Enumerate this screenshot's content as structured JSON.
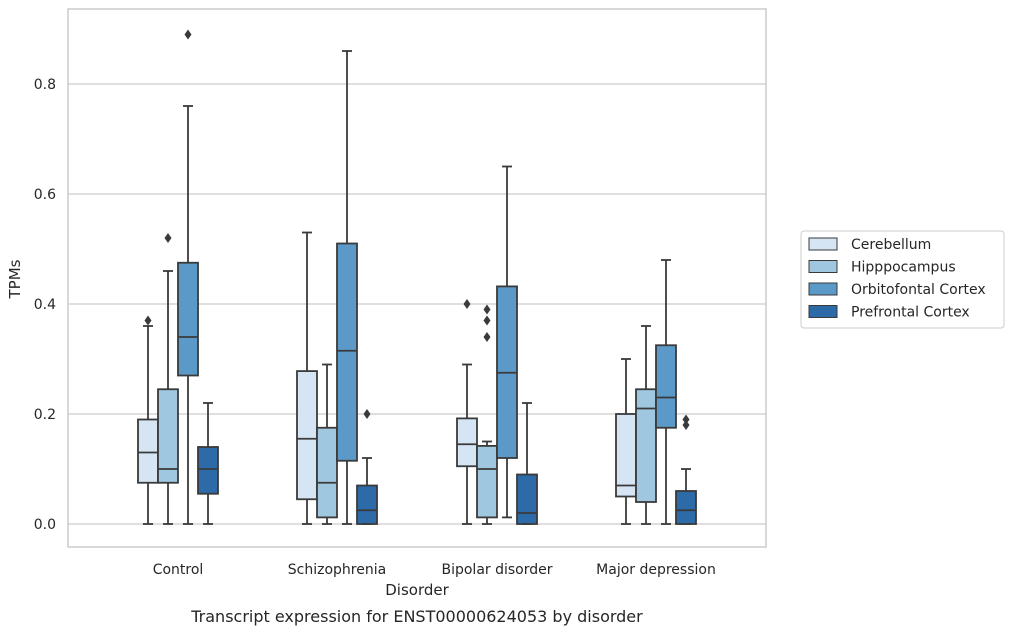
{
  "chart_data": {
    "type": "boxplot",
    "caption": "Transcript expression for ENST00000624053 by disorder",
    "xlabel": "Disorder",
    "ylabel": "TPMs",
    "ylim": [
      -0.043,
      0.94
    ],
    "yticks": [
      0.0,
      0.2,
      0.4,
      0.6,
      0.8
    ],
    "ytick_labels": [
      "0.0",
      "0.2",
      "0.4",
      "0.6",
      "0.8"
    ],
    "grid": "horizontal",
    "legend_position": "right",
    "categories": [
      "Control",
      "Schizophrenia",
      "Bipolar disorder",
      "Major depression"
    ],
    "series": [
      {
        "name": "Cerebellum",
        "color": "#d6e5f3",
        "boxes": [
          {
            "min": 0.0,
            "q1": 0.075,
            "median": 0.13,
            "q3": 0.19,
            "max": 0.36,
            "outliers": [
              0.37
            ]
          },
          {
            "min": 0.0,
            "q1": 0.045,
            "median": 0.155,
            "q3": 0.278,
            "max": 0.53,
            "outliers": []
          },
          {
            "min": 0.0,
            "q1": 0.105,
            "median": 0.145,
            "q3": 0.192,
            "max": 0.29,
            "outliers": [
              0.4
            ]
          },
          {
            "min": 0.0,
            "q1": 0.05,
            "median": 0.07,
            "q3": 0.2,
            "max": 0.3,
            "outliers": []
          }
        ]
      },
      {
        "name": "Hipppocampus",
        "color": "#9fc7df",
        "boxes": [
          {
            "min": 0.0,
            "q1": 0.075,
            "median": 0.1,
            "q3": 0.245,
            "max": 0.46,
            "outliers": [
              0.52
            ]
          },
          {
            "min": 0.0,
            "q1": 0.012,
            "median": 0.075,
            "q3": 0.175,
            "max": 0.29,
            "outliers": []
          },
          {
            "min": 0.0,
            "q1": 0.012,
            "median": 0.1,
            "q3": 0.142,
            "max": 0.15,
            "outliers": [
              0.34,
              0.37,
              0.39
            ]
          },
          {
            "min": 0.0,
            "q1": 0.04,
            "median": 0.21,
            "q3": 0.245,
            "max": 0.36,
            "outliers": []
          }
        ]
      },
      {
        "name": "Orbitofontal Cortex",
        "color": "#5b9ac8",
        "boxes": [
          {
            "min": 0.0,
            "q1": 0.27,
            "median": 0.34,
            "q3": 0.475,
            "max": 0.76,
            "outliers": [
              0.89
            ]
          },
          {
            "min": 0.0,
            "q1": 0.115,
            "median": 0.315,
            "q3": 0.51,
            "max": 0.86,
            "outliers": []
          },
          {
            "min": 0.012,
            "q1": 0.12,
            "median": 0.275,
            "q3": 0.432,
            "max": 0.65,
            "outliers": []
          },
          {
            "min": 0.0,
            "q1": 0.175,
            "median": 0.23,
            "q3": 0.325,
            "max": 0.48,
            "outliers": []
          }
        ]
      },
      {
        "name": "Prefrontal Cortex",
        "color": "#2c6aa8",
        "boxes": [
          {
            "min": 0.0,
            "q1": 0.055,
            "median": 0.1,
            "q3": 0.14,
            "max": 0.22,
            "outliers": []
          },
          {
            "min": 0.0,
            "q1": 0.0,
            "median": 0.025,
            "q3": 0.07,
            "max": 0.12,
            "outliers": [
              0.2
            ]
          },
          {
            "min": 0.0,
            "q1": 0.0,
            "median": 0.02,
            "q3": 0.09,
            "max": 0.22,
            "outliers": []
          },
          {
            "min": 0.0,
            "q1": 0.0,
            "median": 0.025,
            "q3": 0.06,
            "max": 0.1,
            "outliers": [
              0.18,
              0.19
            ]
          }
        ]
      }
    ]
  }
}
